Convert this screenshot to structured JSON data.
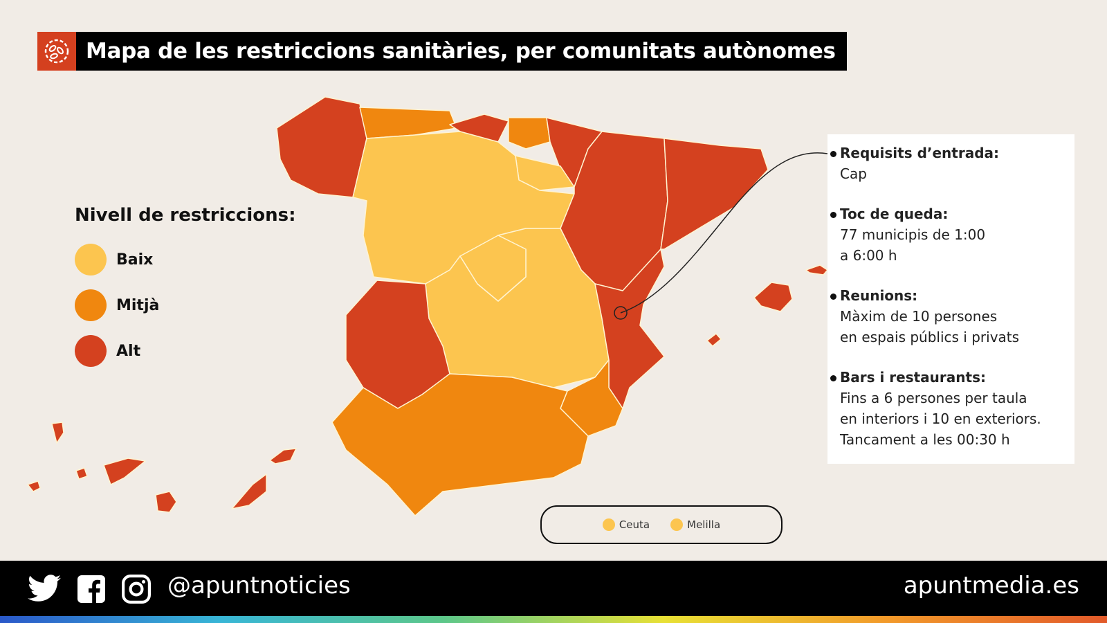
{
  "title": "Mapa de les restriccions sanitàries, per comunitats autònomes",
  "title_icon": "virus-icon",
  "colors": {
    "baix": "#fcc54f",
    "mitja": "#f0870f",
    "alt": "#d4411f",
    "background": "#f1ece6",
    "accent": "#d4401f"
  },
  "legend": {
    "title": "Nivell de restriccions:",
    "items": [
      {
        "label": "Baix",
        "level": "baix"
      },
      {
        "label": "Mitjà",
        "level": "mitja"
      },
      {
        "label": "Alt",
        "level": "alt"
      }
    ]
  },
  "regions": [
    {
      "id": "galicia",
      "level": "alt"
    },
    {
      "id": "asturias",
      "level": "mitja"
    },
    {
      "id": "cantabria",
      "level": "alt"
    },
    {
      "id": "pais-basc",
      "level": "mitja"
    },
    {
      "id": "navarra",
      "level": "alt"
    },
    {
      "id": "la-rioja",
      "level": "baix"
    },
    {
      "id": "castella-i-lleo",
      "level": "baix"
    },
    {
      "id": "arago",
      "level": "alt"
    },
    {
      "id": "catalunya",
      "level": "alt"
    },
    {
      "id": "madrid",
      "level": "baix"
    },
    {
      "id": "castella-la-manxa",
      "level": "baix"
    },
    {
      "id": "comunitat-valenciana",
      "level": "alt"
    },
    {
      "id": "extremadura",
      "level": "alt"
    },
    {
      "id": "murcia",
      "level": "mitja"
    },
    {
      "id": "andalusia",
      "level": "mitja"
    },
    {
      "id": "balears",
      "level": "alt"
    },
    {
      "id": "canaries",
      "level": "alt"
    },
    {
      "id": "ceuta",
      "level": "baix"
    },
    {
      "id": "melilla",
      "level": "baix"
    }
  ],
  "info": {
    "highlighted_region": "comunitat-valenciana",
    "sections": [
      {
        "heading": "Requisits d’entrada:",
        "lines": [
          "Cap"
        ]
      },
      {
        "heading": "Toc de queda:",
        "lines": [
          "77 municipis de 1:00",
          "a 6:00 h"
        ]
      },
      {
        "heading": "Reunions:",
        "lines": [
          "Màxim de 10 persones",
          "en espais públics i privats"
        ]
      },
      {
        "heading": "Bars i restaurants:",
        "lines": [
          "Fins a 6 persones per taula",
          "en interiors i 10 en exteriors.",
          "Tancament a les 00:30 h"
        ]
      }
    ]
  },
  "ceuta_melilla": {
    "ceuta": "Ceuta",
    "melilla": "Melilla"
  },
  "footer": {
    "social_icons": [
      "twitter-icon",
      "facebook-icon",
      "instagram-icon"
    ],
    "handle": "@apuntnoticies",
    "site": "apuntmedia.es"
  }
}
